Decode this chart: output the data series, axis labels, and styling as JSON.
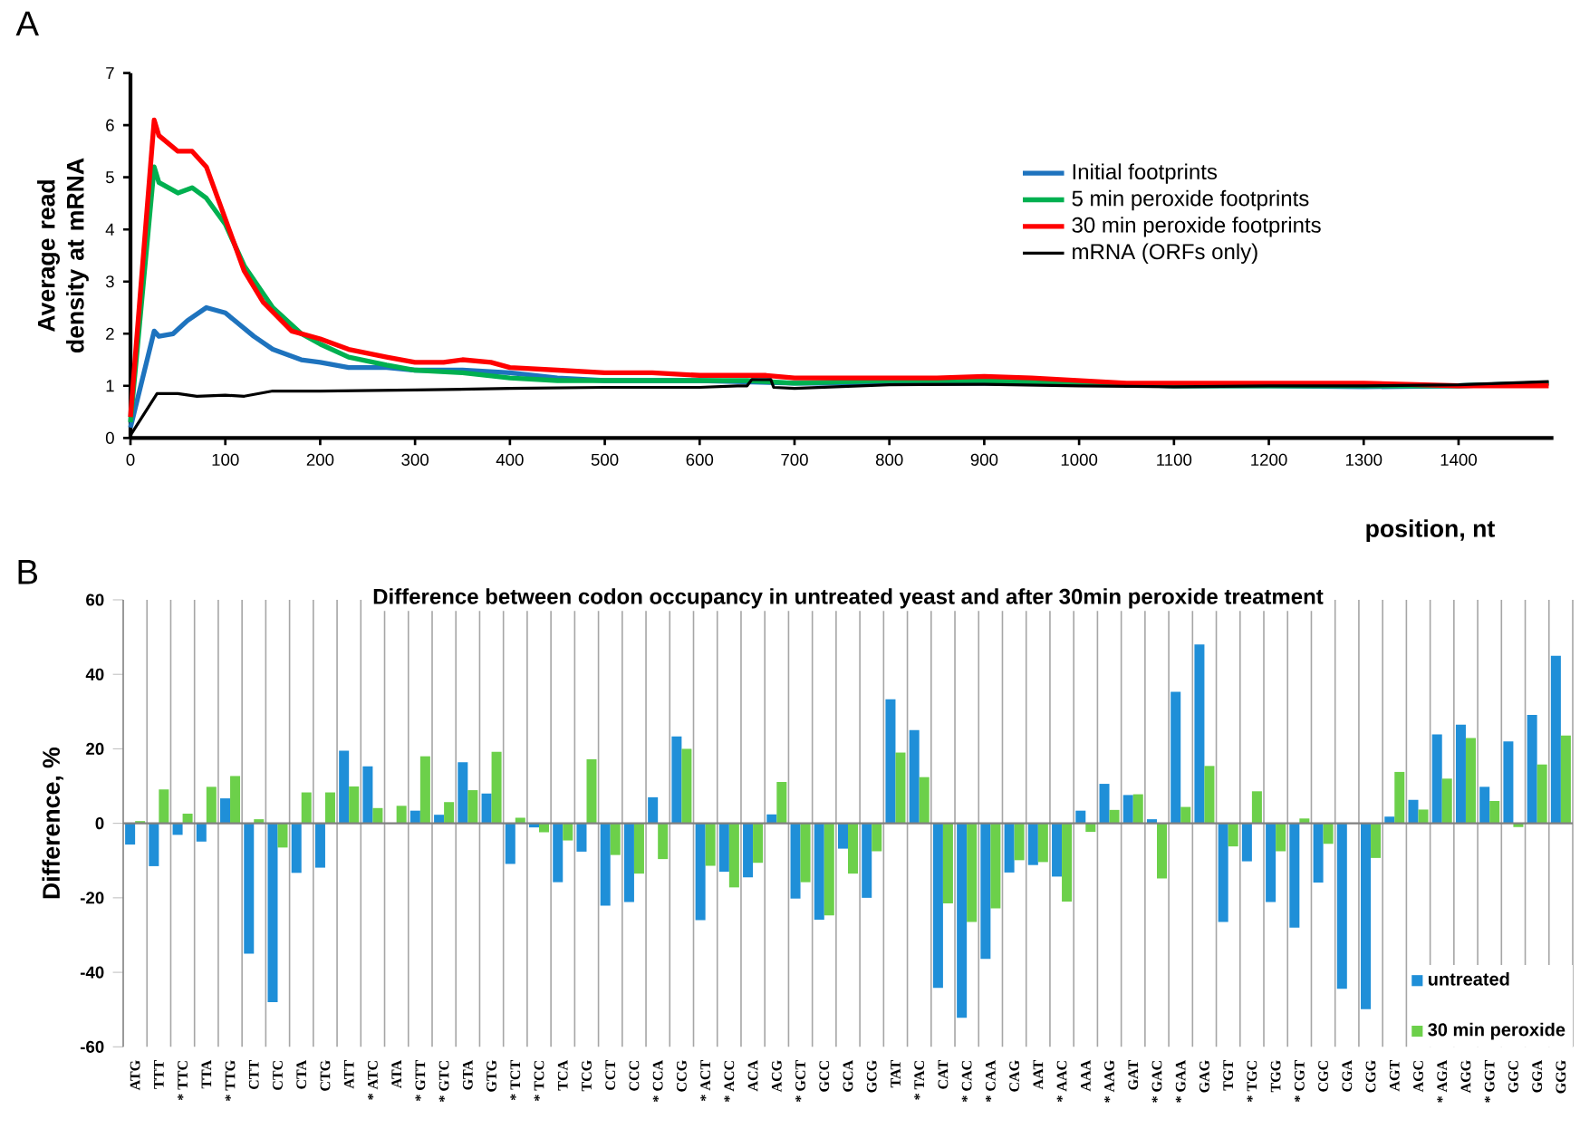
{
  "chart_data": [
    {
      "type": "line",
      "xlabel": "position, nt",
      "ylabel": "Average read density at mRNA",
      "xlim": [
        0,
        1500
      ],
      "ylim": [
        0,
        7
      ],
      "xticks": [
        0,
        100,
        200,
        300,
        400,
        500,
        600,
        700,
        800,
        900,
        1000,
        1100,
        1200,
        1300,
        1400
      ],
      "yticks": [
        0,
        1,
        2,
        3,
        4,
        5,
        6,
        7
      ],
      "legend": "right",
      "marker": "none",
      "annotations": [
        "A"
      ],
      "series": [
        {
          "name": "Initial footprints",
          "color": "#1e73be",
          "x": [
            0,
            25,
            30,
            45,
            60,
            80,
            100,
            130,
            150,
            180,
            200,
            230,
            270,
            300,
            350,
            400,
            450,
            500,
            600,
            700,
            800,
            1000,
            1100,
            1200,
            1300,
            1400,
            1495
          ],
          "values": [
            0.2,
            2.05,
            1.95,
            2.0,
            2.25,
            2.5,
            2.4,
            1.95,
            1.7,
            1.5,
            1.45,
            1.35,
            1.35,
            1.3,
            1.3,
            1.25,
            1.15,
            1.1,
            1.1,
            1.05,
            1.05,
            1.05,
            1.0,
            1.0,
            0.98,
            1.0,
            1.05
          ]
        },
        {
          "name": "5 min peroxide footprints",
          "color": "#00b050",
          "x": [
            0,
            25,
            30,
            50,
            65,
            80,
            100,
            120,
            150,
            180,
            200,
            230,
            270,
            300,
            350,
            400,
            450,
            500,
            600,
            650,
            700,
            800,
            900,
            1000,
            1100,
            1200,
            1300,
            1400,
            1495
          ],
          "values": [
            0.3,
            5.2,
            4.9,
            4.7,
            4.8,
            4.6,
            4.1,
            3.3,
            2.5,
            2.0,
            1.8,
            1.55,
            1.4,
            1.3,
            1.25,
            1.15,
            1.1,
            1.1,
            1.1,
            1.1,
            1.05,
            1.1,
            1.1,
            1.05,
            1.0,
            1.0,
            1.0,
            1.0,
            1.05
          ]
        },
        {
          "name": "30 min peroxide footprints",
          "color": "#ff0000",
          "x": [
            0,
            25,
            30,
            50,
            65,
            80,
            100,
            120,
            140,
            170,
            200,
            230,
            270,
            300,
            330,
            350,
            380,
            400,
            450,
            500,
            550,
            600,
            650,
            670,
            700,
            750,
            800,
            850,
            900,
            950,
            1000,
            1050,
            1100,
            1200,
            1300,
            1400,
            1495
          ],
          "values": [
            0.4,
            6.1,
            5.8,
            5.5,
            5.5,
            5.2,
            4.2,
            3.2,
            2.6,
            2.05,
            1.9,
            1.7,
            1.55,
            1.45,
            1.45,
            1.5,
            1.45,
            1.35,
            1.3,
            1.25,
            1.25,
            1.2,
            1.2,
            1.2,
            1.15,
            1.15,
            1.15,
            1.15,
            1.18,
            1.15,
            1.1,
            1.05,
            1.05,
            1.05,
            1.05,
            1.0,
            1.0
          ]
        },
        {
          "name": "mRNA (ORFs only)",
          "color": "#000000",
          "x": [
            0,
            28,
            50,
            70,
            100,
            120,
            150,
            200,
            300,
            400,
            500,
            600,
            640,
            650,
            655,
            675,
            678,
            700,
            800,
            900,
            1000,
            1100,
            1200,
            1300,
            1400,
            1495
          ],
          "values": [
            0.05,
            0.85,
            0.85,
            0.8,
            0.82,
            0.8,
            0.9,
            0.9,
            0.92,
            0.95,
            0.97,
            0.97,
            1.0,
            1.0,
            1.12,
            1.12,
            0.97,
            0.95,
            1.02,
            1.03,
            1.0,
            0.98,
            1.0,
            1.0,
            1.02,
            1.08
          ]
        }
      ]
    },
    {
      "type": "bar",
      "title": "Difference between codon occupancy in untreated yeast and after 30min peroxide treatment",
      "ylabel": "Difference, %",
      "ylim": [
        -60,
        60
      ],
      "yticks": [
        -60,
        -40,
        -20,
        0,
        20,
        40,
        60
      ],
      "grid": "x",
      "legend": "bottom right",
      "categories": [
        "ATG",
        "TTT",
        "* TTC",
        "TTA",
        "* TTG",
        "CTT",
        "CTC",
        "CTA",
        "CTG",
        "ATT",
        "* ATC",
        "ATA",
        "* GTT",
        "* GTC",
        "GTA",
        "GTG",
        "* TCT",
        "* TCC",
        "TCA",
        "TCG",
        "CCT",
        "CCC",
        "* CCA",
        "CCG",
        "* ACT",
        "* ACC",
        "ACA",
        "ACG",
        "* GCT",
        "GCC",
        "GCA",
        "GCG",
        "TAT",
        "* TAC",
        "CAT",
        "* CAC",
        "* CAA",
        "CAG",
        "AAT",
        "* AAC",
        "AAA",
        "* AAG",
        "GAT",
        "* GAC",
        "* GAA",
        "GAG",
        "TGT",
        "* TGC",
        "TGG",
        "* CGT",
        "CGC",
        "CGA",
        "CGG",
        "AGT",
        "AGC",
        "* AGA",
        "AGG",
        "* GGT",
        "GGC",
        "GGA",
        "GGG"
      ],
      "series": [
        {
          "name": "untreated",
          "color": "#1f8fd8",
          "values": [
            -5.7,
            -11.5,
            -3.1,
            -4.9,
            6.7,
            -35,
            -48,
            -13.3,
            -11.9,
            19.5,
            15.3,
            0,
            3.4,
            2.3,
            16.4,
            8,
            -10.9,
            -1.1,
            -15.8,
            -7.6,
            -22.1,
            -21.1,
            7,
            23.3,
            -26,
            -13,
            -14.5,
            2.4,
            -20.2,
            -25.9,
            -6.8,
            -20,
            33.3,
            25,
            -44.2,
            -52.2,
            -36.4,
            -13.2,
            -11.2,
            -14.3,
            3.4,
            10.6,
            7.6,
            1.1,
            35.3,
            48,
            -26.5,
            -10.2,
            -21.1,
            -28,
            -15.9,
            -44.4,
            -49.9,
            1.8,
            6.3,
            23.9,
            26.5,
            9.8,
            22,
            29.1,
            45
          ]
        },
        {
          "name": "30 min peroxide",
          "color": "#6cd04a",
          "values": [
            0.6,
            9.1,
            2.6,
            9.8,
            12.7,
            1.1,
            -6.5,
            8.3,
            8.3,
            9.9,
            4.1,
            4.7,
            18,
            5.7,
            8.9,
            19.2,
            1.5,
            -2.4,
            -4.6,
            17.2,
            -8.5,
            -13.5,
            -9.6,
            20,
            -11.4,
            -17.2,
            -10.6,
            11.1,
            -15.8,
            -24.7,
            -13.5,
            -7.5,
            19,
            12.4,
            -21.5,
            -26.5,
            -22.8,
            -9.9,
            -10.4,
            -21,
            -2.3,
            3.6,
            7.8,
            -14.8,
            4.4,
            15.4,
            -6.2,
            8.6,
            -7.5,
            1.3,
            -5.5,
            0,
            -9.3,
            13.8,
            3.7,
            12,
            22.9,
            6,
            -1.0,
            15.8,
            23.6
          ]
        }
      ],
      "annotations": [
        "B"
      ]
    }
  ]
}
